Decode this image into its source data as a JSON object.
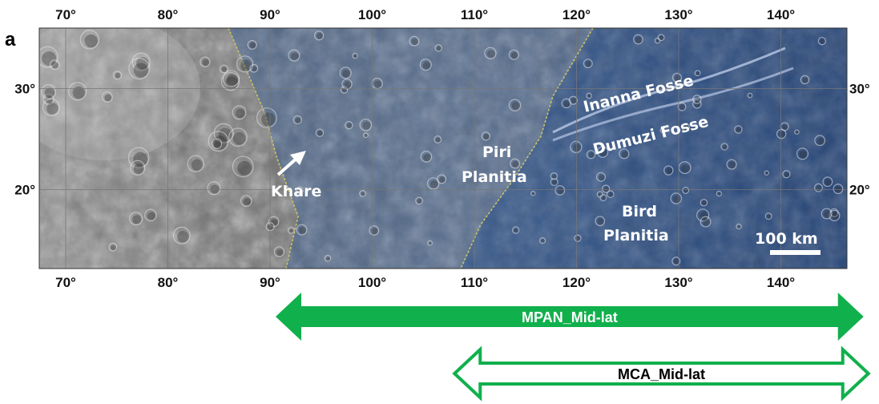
{
  "panel_label": "a",
  "lon_ticks": [
    "70°",
    "80°",
    "90°",
    "100°",
    "110°",
    "120°",
    "130°",
    "140°"
  ],
  "lat_ticks": [
    "30°",
    "20°"
  ],
  "features": {
    "khare": "Khare",
    "piri_1": "Piri",
    "piri_2": "Planitia",
    "bird_1": "Bird",
    "bird_2": "Planitia",
    "inanna": "Inanna Fosse",
    "dumuzi": "Dumuzi Fosse"
  },
  "scale_bar": {
    "label": "100 km"
  },
  "coverage": {
    "mpan": {
      "label": "MPAN_Mid-lat",
      "lon_from": 90,
      "lon_to": 147,
      "style": "filled",
      "color": "#10b04c"
    },
    "mca": {
      "label": "MCA_Mid-lat",
      "lon_from": 109,
      "lon_to": 147,
      "style": "outline",
      "color": "#10b04c"
    }
  },
  "colors": {
    "overlay": "#2c4f86",
    "boundary": "#c9c267",
    "arrow": "#10b04c"
  }
}
